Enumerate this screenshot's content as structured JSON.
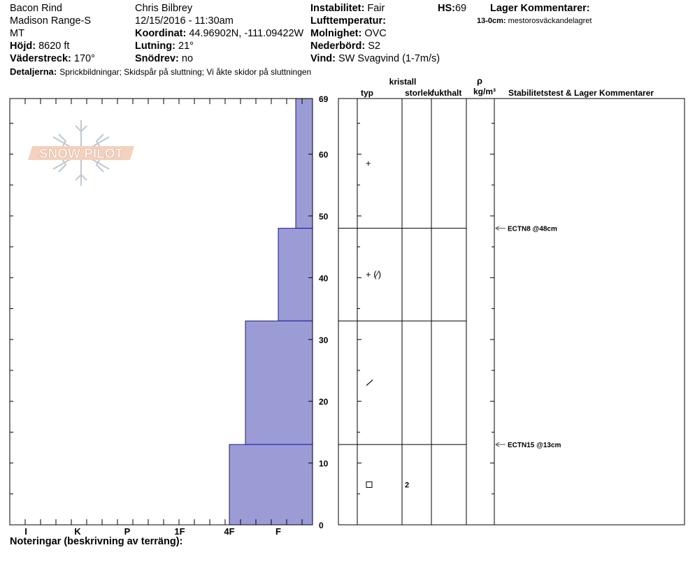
{
  "header": {
    "location": "Bacon Rind",
    "range": "Madison Range-S",
    "state": "MT",
    "elevation_label": "Höjd:",
    "elevation_value": "8620 ft",
    "aspect_label": "Väderstreck:",
    "aspect_value": "170°",
    "details_label": "Detaljerna:",
    "details_value": "Sprickbildningar;  Skidspår på sluttning;  Vi åkte skidor på sluttningen",
    "observer": "Chris Bilbrey",
    "datetime": "12/15/2016 - 11:30am",
    "coord_label": "Koordinat:",
    "coord_value": "44.96902N, -111.09422W",
    "slope_label": "Lutning:",
    "slope_value": "21°",
    "drift_label": "Snödrev:",
    "drift_value": "no",
    "stability_label": "Instabilitet:",
    "stability_value": "Fair",
    "hs_label": "HS:",
    "hs_value": "69",
    "airtemp_label": "Lufttemperatur:",
    "airtemp_value": "",
    "sky_label": "Molnighet:",
    "sky_value": "OVC",
    "precip_label": "Nederbörd:",
    "precip_value": "S2",
    "wind_label": "Vind:",
    "wind_value": "SW Svagvind (1-7m/s)",
    "layer_comments_title": "Lager Kommentarer:",
    "layer_comments": [
      {
        "range": "13-0cm:",
        "text": "mestorosväckandelagret"
      }
    ],
    "notes_label": "Noteringar (beskrivning av terräng):"
  },
  "logo_text": "SNOW PILOT",
  "columns": {
    "kristall": "kristall",
    "typ": "typ",
    "storlek": "storlek",
    "fukthalt": "fukthalt",
    "rho": "ρ",
    "density_unit": "kg/m³",
    "stability_title": "Stabilitetstest & Lager Kommentarer"
  },
  "chart_data": {
    "type": "bar",
    "orientation": "horizontal-stepped",
    "y_axis": {
      "label": "",
      "range": [
        0,
        69
      ],
      "ticks": [
        0,
        10,
        20,
        30,
        40,
        50,
        60,
        69
      ]
    },
    "x_axis": {
      "label": "",
      "categories": [
        "I",
        "K",
        "P",
        "1F",
        "4F",
        "F"
      ],
      "reversed": true
    },
    "series": [
      {
        "values": [
          {
            "from": 69,
            "to": 48,
            "hardness": "F-"
          },
          {
            "from": 48,
            "to": 33,
            "hardness": "F"
          },
          {
            "from": 33,
            "to": 13,
            "hardness": "4F+"
          },
          {
            "from": 13,
            "to": 0,
            "hardness": "4F"
          }
        ]
      }
    ],
    "layer_boundaries": [
      69,
      48,
      33,
      13,
      0
    ],
    "grain_forms": [
      {
        "height": 58.5,
        "symbol": "+"
      },
      {
        "height": 40.5,
        "symbol": "+ (⁄)"
      },
      {
        "height": 23,
        "symbol": "⁄"
      },
      {
        "height": 6.5,
        "symbol": "□",
        "size": "2"
      }
    ],
    "stability_tests": [
      {
        "height": 48,
        "label": "ECTN8 @48cm"
      },
      {
        "height": 13,
        "label": "ECTN15 @13cm"
      }
    ],
    "bar_color": "#9b9bd6",
    "bar_edge_color": "#1a1a8c"
  }
}
